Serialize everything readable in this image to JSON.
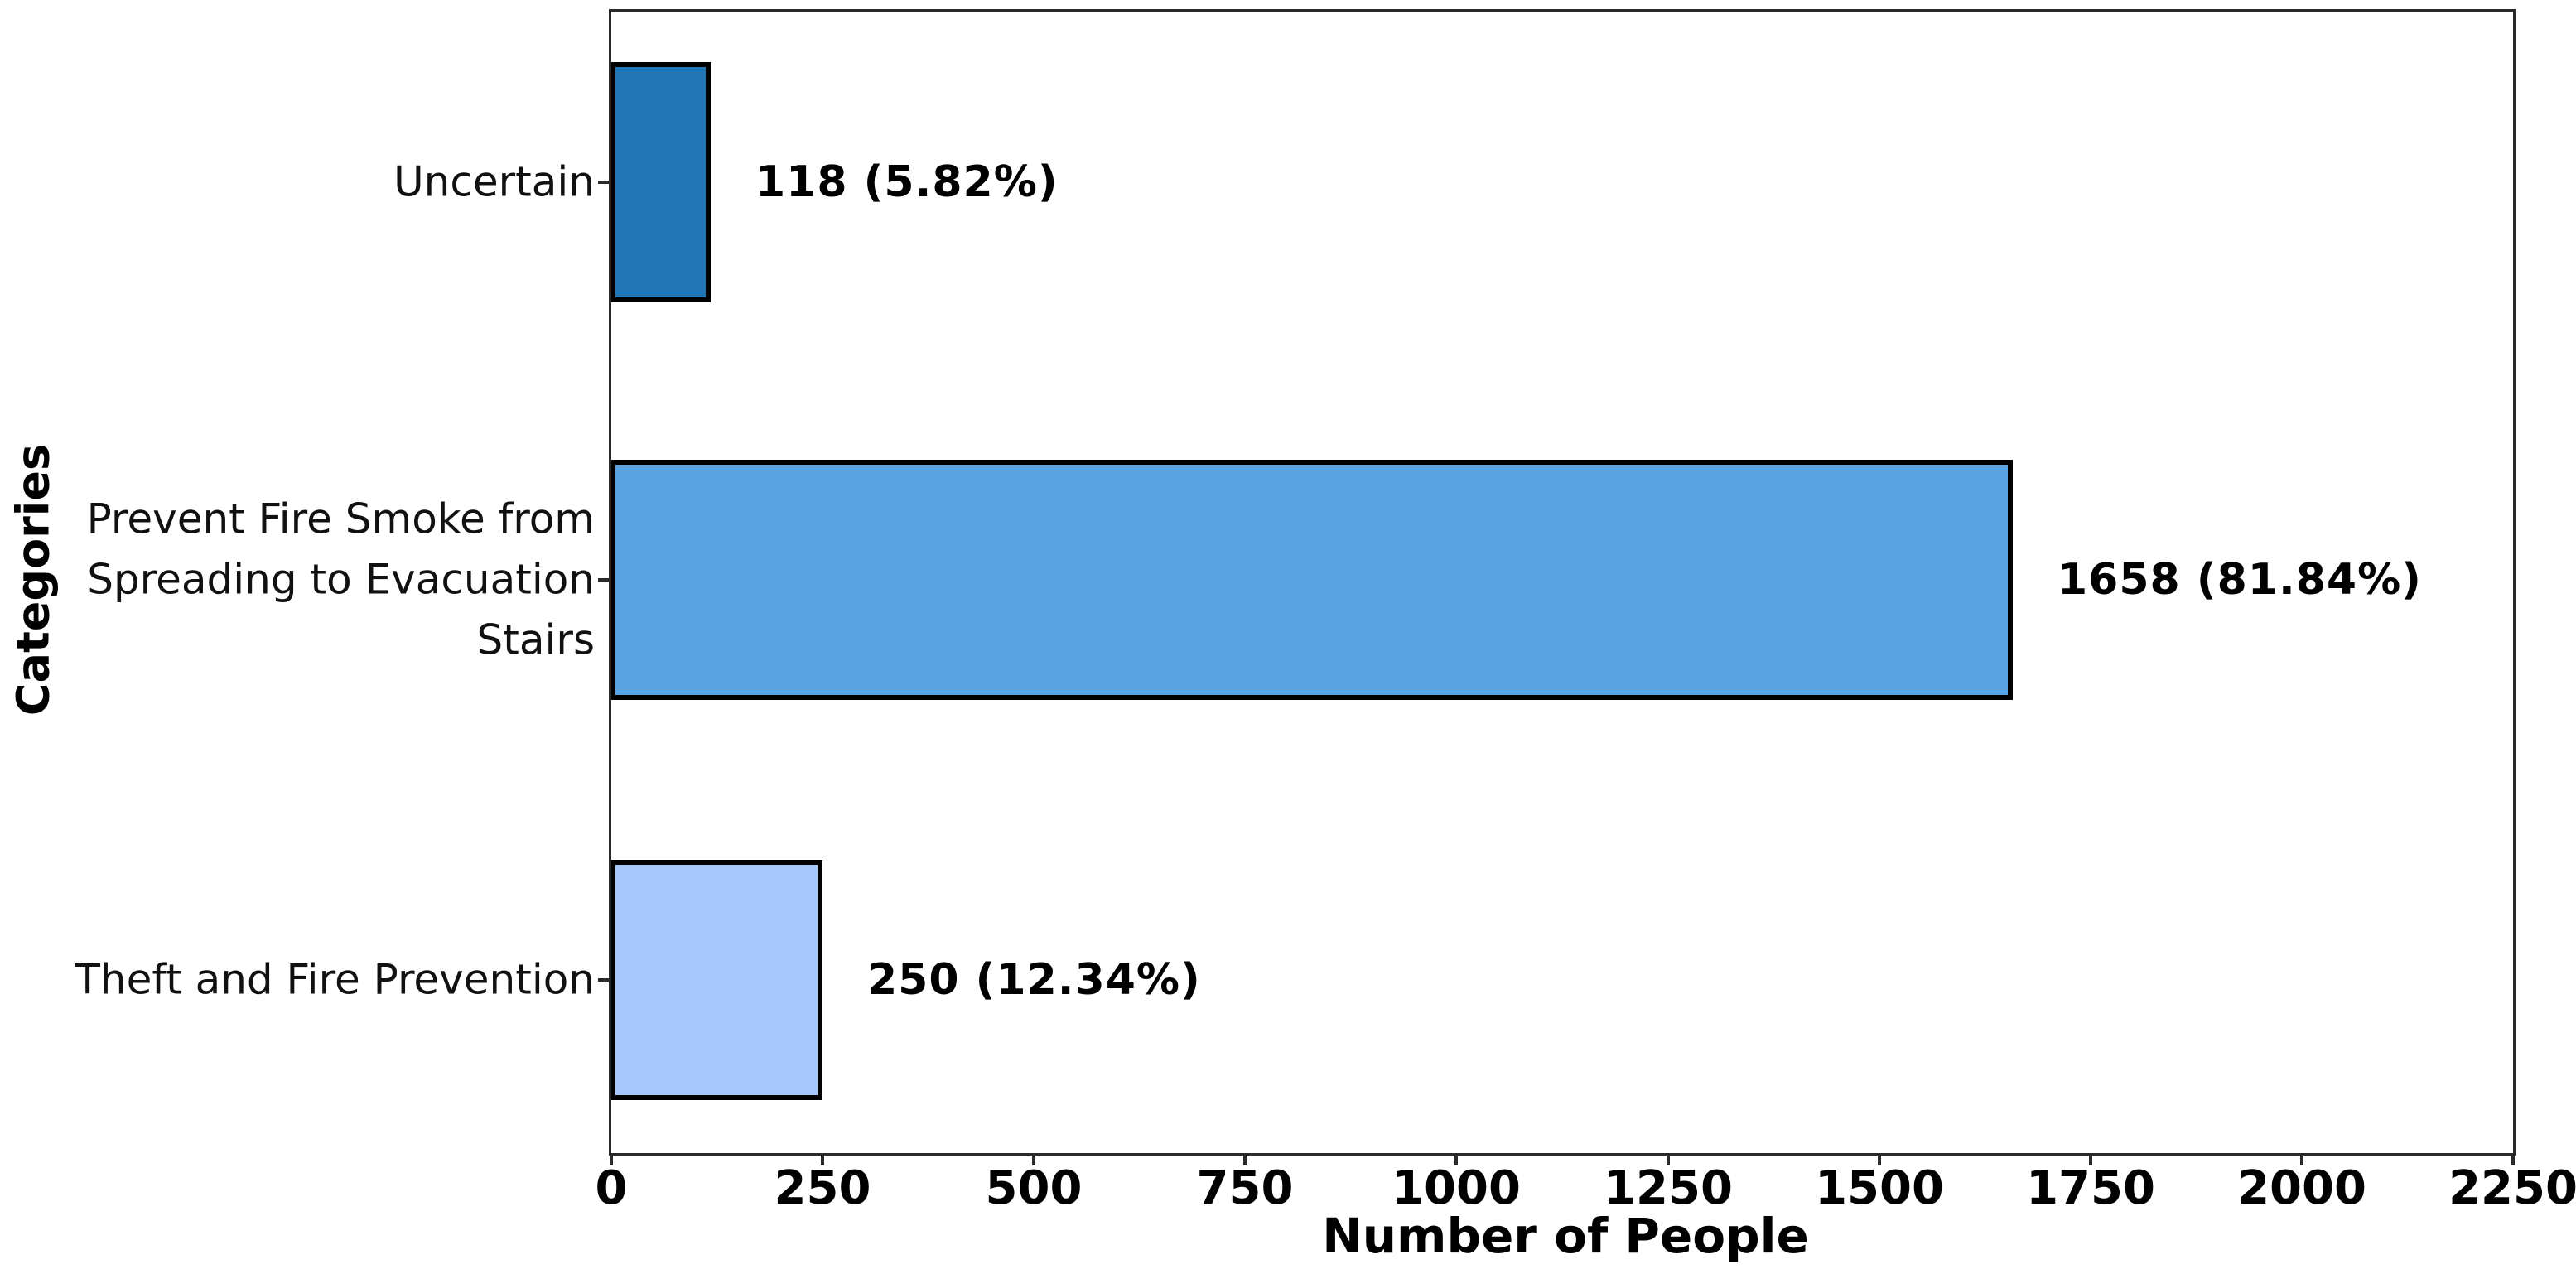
{
  "chart_data": {
    "type": "bar",
    "orientation": "horizontal",
    "title": "",
    "xlabel": "Number of People",
    "ylabel": "Categories",
    "xlim": [
      0,
      2250
    ],
    "xticks": [
      0,
      250,
      500,
      750,
      1000,
      1250,
      1500,
      1750,
      2000,
      2250
    ],
    "grid": false,
    "legend": null,
    "categories": [
      "Uncertain",
      "Prevent Fire Smoke from Spreading to Evacuation Stairs",
      "Theft and Fire Prevention"
    ],
    "category_lines": [
      [
        "Uncertain"
      ],
      [
        "Prevent Fire Smoke from",
        "Spreading to Evacuation",
        "Stairs"
      ],
      [
        "Theft and Fire Prevention"
      ]
    ],
    "values": [
      118,
      1658,
      250
    ],
    "percentages": [
      5.82,
      81.84,
      12.34
    ],
    "value_labels": [
      "118 (5.82%)",
      "1658 (81.84%)",
      "250 (12.34%)"
    ],
    "bar_colors": [
      "#2276b4",
      "#5aa3e3",
      "#a6c8fa"
    ],
    "bar_edge_color": "#000000"
  }
}
